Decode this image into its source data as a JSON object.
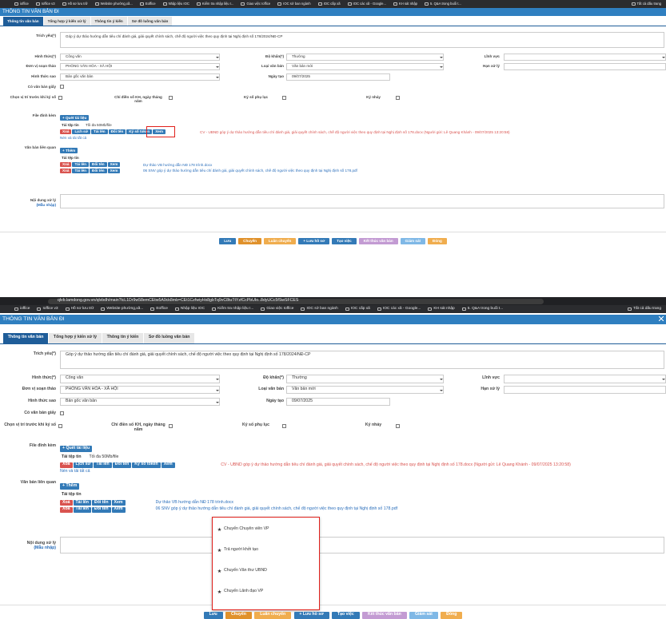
{
  "screens": [
    {
      "bookmarks": [
        "ioffice",
        "Ioffice v3",
        "Hồ sơ lưu trữ",
        "Website phường,xã...",
        "Eoffice",
        "Nhập liệu IOC",
        "Kiểm tra nhập liệu I...",
        "Giao việc Ioffice",
        "IOC sở ban ngành",
        "IOC cấp xã",
        "IOC các xã - Google...",
        "KH sát nhập",
        "5. Q&A trong buổi t...",
        "Tất cả dấu trang"
      ],
      "title": "THÔNG TIN VĂN BẢN ĐI",
      "tabs": [
        "Thông tin văn bản",
        "Tổng hợp ý kiến xử lý",
        "Thông tin ý kiến",
        "Sơ đồ luồng văn bản"
      ],
      "summary": {
        "label": "Trích yếu(*)",
        "value": "Góp ý dự thảo hướng dẫn tiêu chí đánh giá, giải quyết chính sách, chế độ người việc theo quy định tại Nghị định số 178/2024/NĐ-CP"
      },
      "rows": [
        [
          {
            "label": "Hình thức(*)",
            "value": "Công văn",
            "select": true
          },
          {
            "label": "Độ khẩn(*)",
            "value": "Thường",
            "select": true
          },
          {
            "label": "Lĩnh vực",
            "select": true
          }
        ],
        [
          {
            "label": "Đơn vị soạn thảo",
            "value": "PHÒNG VĂN HÓA - XÃ HỘI",
            "select": true
          },
          {
            "label": "Loại văn bản",
            "value": "Văn bản mới",
            "select": true
          },
          {
            "label": "Hạn xử lý",
            "select": false
          }
        ],
        [
          {
            "label": "Hình thức sao",
            "value": "Bản gốc văn bản",
            "select": true
          },
          {
            "label": "Ngày tạo",
            "value": "09/07/2025",
            "select": false
          }
        ]
      ],
      "paper": "Có văn bản giấy",
      "checks": [
        "Chọn vị trí trước khi ký số",
        "Chỉ điền số KH, ngày tháng năm",
        "Ký số phụ lục",
        "Ký nháy"
      ],
      "attach": {
        "label": "File đính kèm",
        "scan": "+ Quét tài liệu",
        "upload": "Tải tệp tin",
        "limit": "Tối đa 50Mb/file",
        "actions": [
          "Xoá",
          "Lịch sử",
          "Tải lên",
          "Đổi tên",
          "Ký số token",
          "Xem"
        ],
        "file": "CV - UBND góp ý dự thảo hướng dẫn tiêu chí đánh giá, giải quyết chính sách, chế độ người việc theo quy định tại Nghị định số 178.docx (Người gửi: Lê Quang Khánh - 09/07/2025 13:20:58)",
        "zip": "Nén và tải tất cả"
      },
      "related": {
        "label": "Văn bản liên quan",
        "add": "+ Thêm",
        "upload": "Tải tệp tin",
        "actions": [
          "Xoá",
          "Tải lên",
          "Đổi tên",
          "Xem"
        ],
        "files": [
          "Dự thảo VB hướng dẫn NĐ 178 trình.docx",
          "06 SNV góp ý dự thảo hướng dẫn tiêu chí đánh giá, giải quyết chính sách, chế độ người việc theo quy định tại Nghị định số 178.pdf"
        ]
      },
      "content": {
        "label": "Nội dung xử lý",
        "hint": "(Mẫu nhập)"
      },
      "footer": [
        "Lưu",
        "Chuyển",
        "Luân chuyển",
        "+ Lưu hồ sơ",
        "Tạo việc",
        "Kết thúc văn bản",
        "Giám sát",
        "Đóng"
      ]
    },
    {
      "url": "qlvb.lamdong.gov.vn/qlvbdh/main?lcL1Dr9w58emCEtw5A9ck8mb=CEt1CzfwiyHx8gbTq9vC8tuTtYzfCcPbUIo..8dyUCc5fSwSFCES",
      "bookmarks": [
        "ioffice",
        "Ioffice v3",
        "Hồ sơ lưu trữ",
        "Website phường,xã...",
        "Eoffice",
        "Nhập liệu IOC",
        "Kiểm tra nhập liệu I...",
        "Giao việc Ioffice",
        "IOC sở ban ngành",
        "IOC cấp xã",
        "IOC các xã - Google...",
        "KH sát nhập",
        "5. Q&A trong buổi t...",
        "Tất cả dấu trang"
      ],
      "title": "THÔNG TIN VĂN BẢN ĐI",
      "tabs": [
        "Thông tin văn bản",
        "Tổng hợp ý kiến xử lý",
        "Thông tin ý kiến",
        "Sơ đồ luồng văn bản"
      ],
      "summary": {
        "label": "Trích yếu(*)",
        "value": "Góp ý dự thảo hướng dẫn tiêu chí đánh giá, giải quyết chính sách, chế độ người việc theo quy định tại Nghị định số 178/2024/NĐ-CP"
      },
      "rows": [
        [
          {
            "label": "Hình thức(*)",
            "value": "Công văn",
            "select": true
          },
          {
            "label": "Độ khẩn(*)",
            "value": "Thường",
            "select": true
          },
          {
            "label": "Lĩnh vực",
            "select": true
          }
        ],
        [
          {
            "label": "Đơn vị soạn thảo",
            "value": "PHÒNG VĂN HÓA - XÃ HỘI",
            "select": true
          },
          {
            "label": "Loại văn bản",
            "value": "Văn bản mới",
            "select": true
          },
          {
            "label": "Hạn xử lý",
            "select": false
          }
        ],
        [
          {
            "label": "Hình thức sao",
            "value": "Bản gốc văn bản",
            "select": true
          },
          {
            "label": "Ngày tạo",
            "value": "09/07/2025",
            "select": false
          }
        ]
      ],
      "paper": "Có văn bản giấy",
      "checks": [
        "Chọn vị trí trước khi ký số",
        "Chỉ điền số KH, ngày tháng năm",
        "Ký số phụ lục",
        "Ký nháy"
      ],
      "attach": {
        "label": "File đính kèm",
        "scan": "+ Quét tài liệu",
        "upload": "Tải tệp tin",
        "limit": "Tối đa 50Mb/file",
        "actions": [
          "Xoá",
          "Lịch sử",
          "Tải lên",
          "Đổi tên",
          "Ký số token",
          "Xem"
        ],
        "file": "CV - UBND góp ý dự thảo hướng dẫn tiêu chí đánh giá, giải quyết chính sách, chế độ người việc theo quy định tại Nghị định số 178.docx (Người gửi: Lê Quang Khánh - 09/07/2025 13:20:58)",
        "zip": "Nén và tải tất cả"
      },
      "related": {
        "label": "Văn bản liên quan",
        "add": "+ Thêm",
        "upload": "Tải tệp tin",
        "actions": [
          "Xoá",
          "Tải lên",
          "Đổi tên",
          "Xem"
        ],
        "files": [
          "Dự thảo VB hướng dẫn NĐ 178 trình.docx",
          "06 SNV góp ý dự thảo hướng dẫn tiêu chí đánh giá, giải quyết chính sách, chế độ người việc theo quy định tại Nghị định số 178.pdf"
        ]
      },
      "content": {
        "label": "Nội dung xử lý",
        "hint": "(Mẫu nhập)"
      },
      "dropdown": [
        "Chuyển Chuyên viên VP",
        "Trả người khởi tạo",
        "Chuyển Văn thư UBND",
        "Chuyển Lãnh đạo VP"
      ],
      "footer": [
        "Lưu",
        "Chuyển",
        "Luân chuyển",
        "+ Lưu hồ sơ",
        "Tạo việc",
        "Kết thúc văn bản",
        "Giám sát",
        "Đóng"
      ]
    }
  ]
}
